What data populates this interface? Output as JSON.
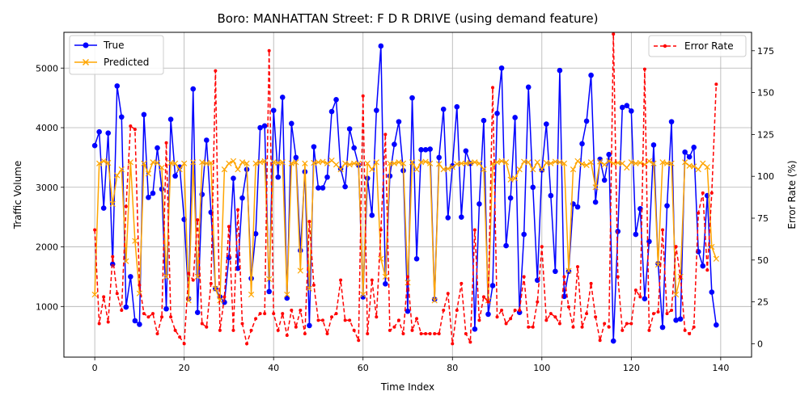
{
  "chart_data": {
    "type": "line",
    "title": "Boro: MANHATTAN Street: F D R DRIVE (using demand feature)",
    "xlabel": "Time Index",
    "ylabel": "Traffic Volume",
    "y2label": "Error Rate (%)",
    "xlim": [
      -6.9,
      146.9
    ],
    "ylim": [
      150,
      5600
    ],
    "y2lim": [
      -8,
      186
    ],
    "xticks": [
      0,
      20,
      40,
      60,
      80,
      100,
      120,
      140
    ],
    "yticks": [
      1000,
      2000,
      3000,
      4000,
      5000
    ],
    "y2ticks": [
      0,
      25,
      50,
      75,
      100,
      125,
      150,
      175
    ],
    "grid": true,
    "legend_left": [
      "True",
      "Predicted"
    ],
    "legend_right": [
      "Error Rate"
    ],
    "colors": {
      "true": "#0000ff",
      "predicted": "#ffa500",
      "error": "#ff0000"
    },
    "series": [
      {
        "name": "True",
        "axis": "left",
        "values": [
          3700,
          3930,
          2650,
          3910,
          1710,
          4700,
          4180,
          990,
          1500,
          760,
          700,
          4220,
          2830,
          2900,
          3660,
          2970,
          960,
          4140,
          3190,
          3340,
          2460,
          1130,
          4650,
          900,
          2880,
          3790,
          2580,
          1300,
          1160,
          1070,
          1820,
          3150,
          1640,
          2820,
          3300,
          1470,
          2220,
          4000,
          4030,
          1250,
          4290,
          3170,
          4510,
          1140,
          4070,
          3500,
          1940,
          3260,
          680,
          3680,
          2990,
          2990,
          3170,
          4270,
          4470,
          3310,
          3010,
          3980,
          3660,
          3370,
          1160,
          3150,
          2530,
          4290,
          5370,
          1380,
          3190,
          3720,
          4100,
          3280,
          920,
          4500,
          1800,
          3630,
          3630,
          3640,
          1120,
          3500,
          4310,
          2490,
          3360,
          4350,
          2500,
          3610,
          3400,
          620,
          2720,
          4120,
          870,
          1350,
          4240,
          5000,
          2020,
          2820,
          4170,
          900,
          2210,
          4680,
          3000,
          1440,
          3290,
          4060,
          2860,
          1590,
          4960,
          1170,
          1590,
          2720,
          2670,
          3730,
          4110,
          4880,
          2750,
          3470,
          3120,
          3550,
          420,
          2260,
          4340,
          4370,
          4280,
          2210,
          2640,
          1130,
          2090,
          3710,
          1720,
          650,
          2690,
          4100,
          770,
          790,
          3590,
          3510,
          3670,
          1920,
          1680,
          2860,
          1240,
          690
        ]
      },
      {
        "name": "Predicted",
        "axis": "left",
        "values": [
          1200,
          3400,
          3440,
          3410,
          2720,
          3200,
          3300,
          1760,
          3420,
          2100,
          1220,
          3400,
          3230,
          3420,
          3410,
          3330,
          1500,
          3410,
          3400,
          3300,
          3400,
          1100,
          3420,
          1500,
          3420,
          3400,
          3410,
          1300,
          1100,
          3300,
          3400,
          3440,
          3300,
          3420,
          3400,
          1200,
          3400,
          3420,
          3440,
          1460,
          3420,
          3410,
          3420,
          1200,
          3400,
          3420,
          1600,
          3400,
          1300,
          3410,
          3420,
          3430,
          3400,
          3450,
          3380,
          3300,
          3400,
          3380,
          3400,
          3400,
          1200,
          3400,
          3300,
          3420,
          1800,
          1500,
          3400,
          3400,
          3420,
          3400,
          1400,
          3420,
          3300,
          3420,
          3430,
          3400,
          1100,
          3390,
          3300,
          3310,
          3340,
          3390,
          3400,
          3400,
          3410,
          3420,
          3400,
          3300,
          1100,
          3400,
          3420,
          3440,
          3420,
          3130,
          3150,
          3300,
          3430,
          3420,
          3300,
          3420,
          3300,
          3410,
          3400,
          3430,
          3420,
          3400,
          1600,
          3300,
          3440,
          3390,
          3370,
          3420,
          3000,
          3430,
          3380,
          3440,
          3400,
          3410,
          3400,
          3330,
          3420,
          3400,
          3410,
          3380,
          3440,
          3400,
          1700,
          3420,
          3400,
          3400,
          1200,
          1500,
          3420,
          3360,
          3350,
          3300,
          3400,
          3340,
          2000,
          1800
        ]
      },
      {
        "name": "Error Rate",
        "axis": "right",
        "values": [
          68,
          12,
          28,
          13,
          52,
          30,
          20,
          82,
          130,
          128,
          35,
          18,
          16,
          18,
          6,
          16,
          120,
          16,
          8,
          4,
          0,
          42,
          38,
          74,
          12,
          10,
          36,
          163,
          8,
          28,
          70,
          8,
          80,
          12,
          0,
          8,
          15,
          18,
          18,
          175,
          18,
          8,
          18,
          5,
          20,
          10,
          20,
          6,
          73,
          35,
          14,
          14,
          6,
          16,
          18,
          38,
          14,
          14,
          8,
          2,
          148,
          6,
          38,
          16,
          68,
          125,
          8,
          10,
          14,
          6,
          40,
          8,
          15,
          6,
          6,
          6,
          6,
          6,
          20,
          30,
          0,
          20,
          36,
          6,
          1,
          68,
          14,
          28,
          25,
          153,
          16,
          20,
          12,
          15,
          20,
          20,
          40,
          10,
          10,
          25,
          58,
          14,
          18,
          16,
          12,
          40,
          22,
          10,
          46,
          10,
          18,
          36,
          16,
          2,
          12,
          10,
          185,
          40,
          8,
          12,
          12,
          32,
          28,
          164,
          8,
          18,
          19,
          68,
          18,
          20,
          58,
          40,
          8,
          6,
          10,
          78,
          90,
          44,
          90,
          155
        ]
      }
    ]
  }
}
